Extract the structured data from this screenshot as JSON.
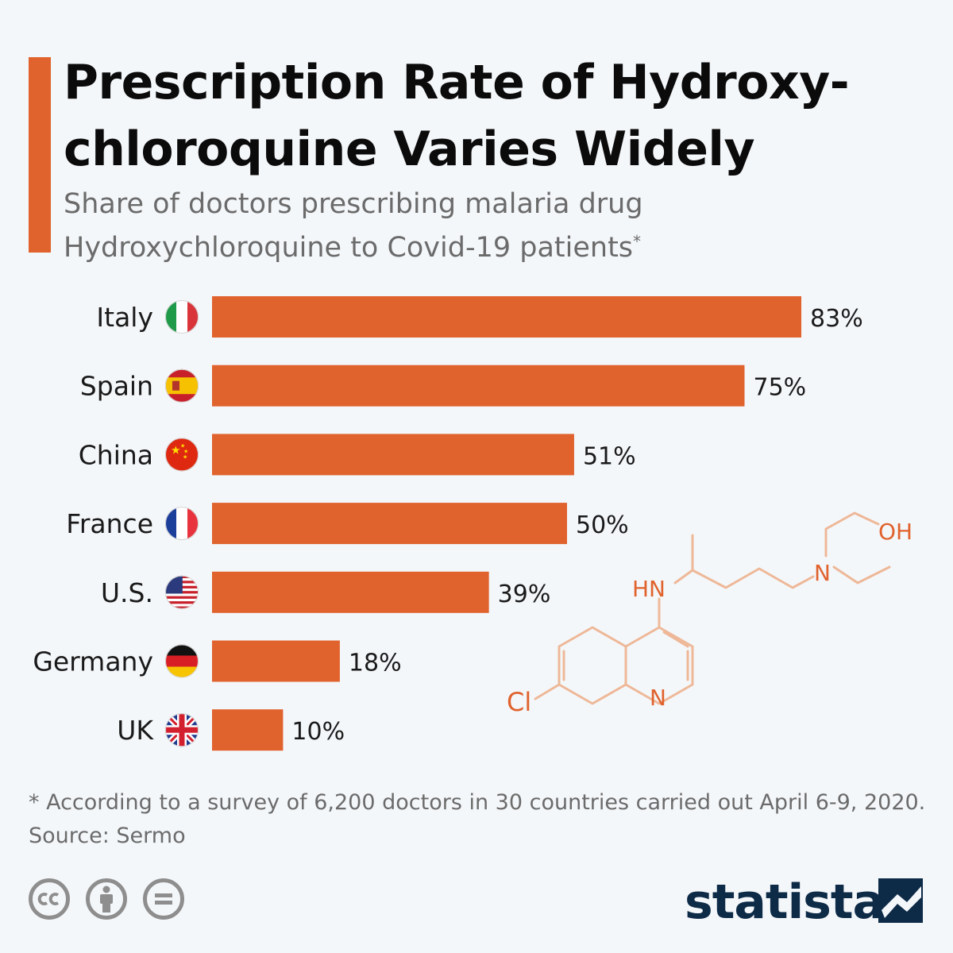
{
  "header": {
    "title_line1": "Prescription Rate of Hydroxy-",
    "title_line2": "chloroquine Varies Widely",
    "subtitle_line1": "Share of doctors prescribing malaria drug",
    "subtitle_line2": "Hydroxychloroquine to Covid-19 patients",
    "subtitle_mark": "*"
  },
  "chart_data": {
    "type": "bar",
    "orientation": "horizontal",
    "categories": [
      "Italy",
      "Spain",
      "China",
      "France",
      "U.S.",
      "Germany",
      "UK"
    ],
    "values": [
      83,
      75,
      51,
      50,
      39,
      18,
      10
    ],
    "value_labels": [
      "83%",
      "75%",
      "51%",
      "50%",
      "39%",
      "18%",
      "10%"
    ],
    "flags": [
      "italy-flag-icon",
      "spain-flag-icon",
      "china-flag-icon",
      "france-flag-icon",
      "us-flag-icon",
      "germany-flag-icon",
      "uk-flag-icon"
    ],
    "unit": "%",
    "xlim": [
      0,
      100
    ],
    "grid": false,
    "bar_color": "#e0622d"
  },
  "molecule": {
    "labels": [
      "OH",
      "N",
      "HN",
      "N",
      "Cl"
    ],
    "color": "#e0622d"
  },
  "footer": {
    "note": "* According to a survey of 6,200 doctors in 30 countries carried out April 6-9, 2020.",
    "source": "Source: Sermo",
    "license_icons": [
      "cc-icon",
      "attribution-icon",
      "no-derivatives-icon"
    ],
    "brand": "statista"
  },
  "colors": {
    "accent": "#e0622d",
    "background": "#f4f7fa",
    "brand": "#0d2a47",
    "text_muted": "#6b6b6b"
  }
}
